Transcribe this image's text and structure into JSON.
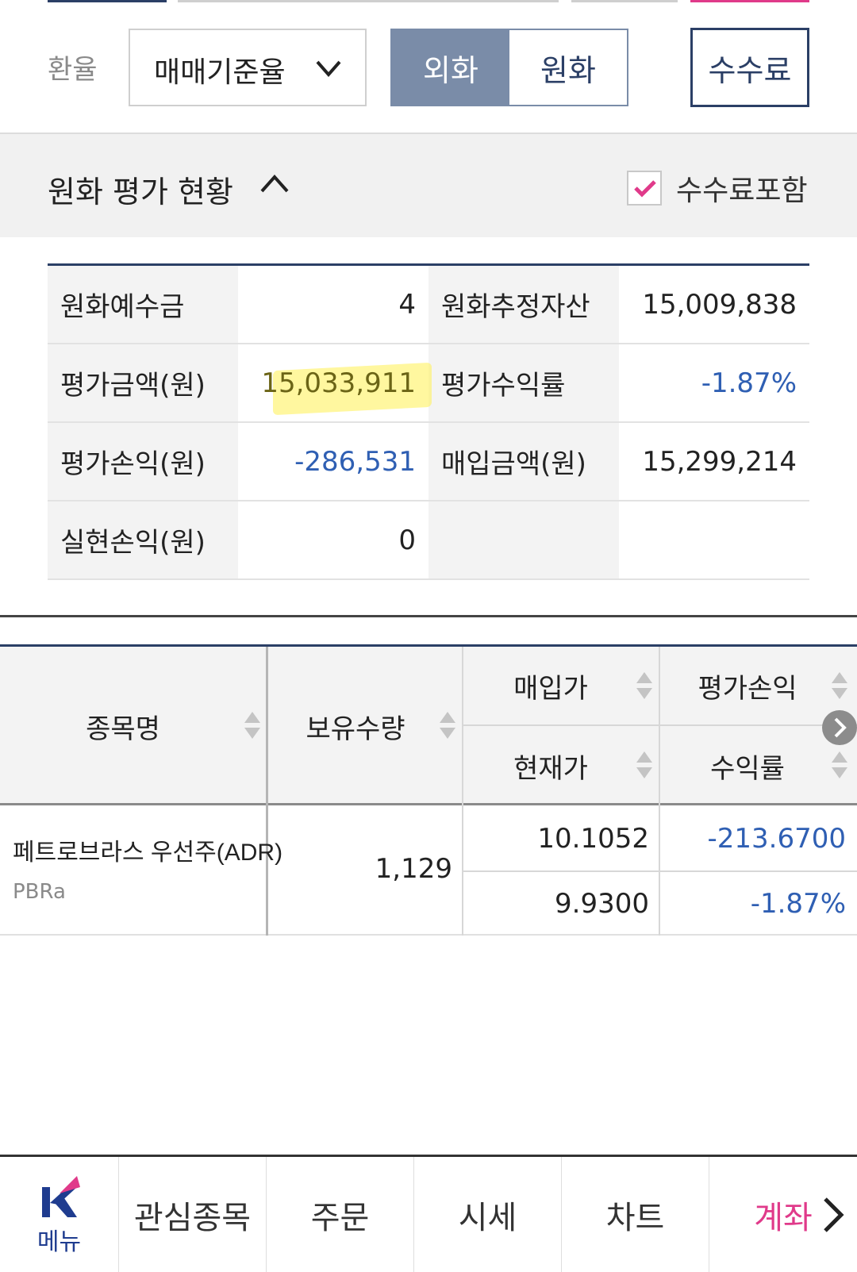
{
  "header": {
    "rate_label": "환율",
    "rate_select_value": "매매기준율",
    "currency_toggle": {
      "foreign_label": "외화",
      "krw_label": "원화",
      "selected": "외화"
    },
    "fee_button_label": "수수료"
  },
  "section": {
    "title": "원화 평가 현황",
    "include_fee_label": "수수료포함",
    "include_fee_checked": true
  },
  "summary": {
    "rows": [
      {
        "label1": "원화예수금",
        "value1": "4",
        "label2": "원화추정자산",
        "value2": "15,009,838"
      },
      {
        "label1": "평가금액(원)",
        "value1": "15,033,911",
        "label2": "평가수익률",
        "value2": "-1.87%"
      },
      {
        "label1": "평가손익(원)",
        "value1": "-286,531",
        "label2": "매입금액(원)",
        "value2": "15,299,214"
      },
      {
        "label1": "실현손익(원)",
        "value1": "0",
        "label2": "",
        "value2": ""
      }
    ]
  },
  "holdings": {
    "headers": {
      "name": "종목명",
      "quantity": "보유수량",
      "buy_price": "매입가",
      "current_price": "현재가",
      "eval_pl": "평가손익",
      "return_rate": "수익률"
    },
    "rows": [
      {
        "name": "페트로브라스 우선주(ADR)",
        "code": "PBRa",
        "quantity": "1,129",
        "buy_price": "10.1052",
        "current_price": "9.9300",
        "eval_pl": "-213.6700",
        "return_rate": "-1.87%"
      }
    ]
  },
  "bottom_nav": {
    "menu_label": "메뉴",
    "items": [
      "관심종목",
      "주문",
      "시세",
      "차트",
      "계좌"
    ],
    "active": "계좌"
  },
  "colors": {
    "navy": "#2b3f66",
    "toggle_active": "#7a8ca8",
    "negative_blue": "#2f5fb3",
    "active_pink": "#e03a8a",
    "highlight": "#fff050"
  }
}
